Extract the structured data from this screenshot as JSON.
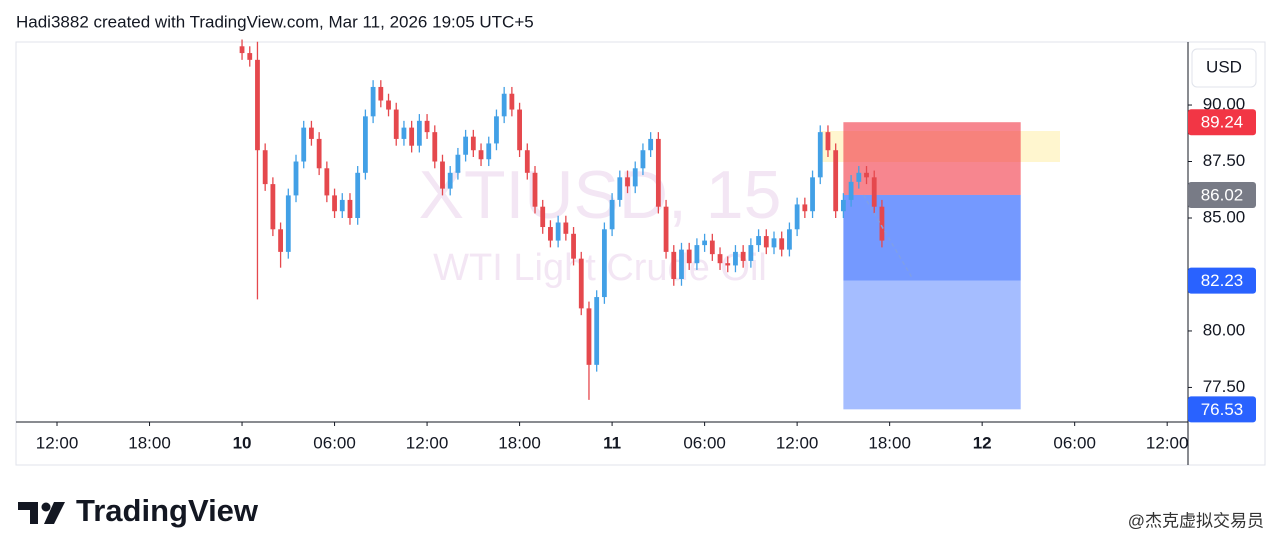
{
  "header": "Hadi3882 created with TradingView.com, Mar 11, 2026 19:05 UTC+5",
  "brand": "TradingView",
  "watermark": "@杰克虚拟交易员",
  "chart_data": {
    "type": "candlestick",
    "symbol": "XTIUSD, 15",
    "description": "WTI Light Crude Oil",
    "currency": "USD",
    "up_color": "#42a0e6",
    "down_color": "#e5484d",
    "grid": false,
    "xlim": [
      -2.66,
      73.35
    ],
    "xticks": [
      {
        "value": 0,
        "label": "12:00"
      },
      {
        "value": 6,
        "label": "18:00"
      },
      {
        "value": 12,
        "label": "10"
      },
      {
        "value": 18,
        "label": "06:00"
      },
      {
        "value": 24,
        "label": "12:00"
      },
      {
        "value": 30,
        "label": "18:00"
      },
      {
        "value": 36,
        "label": "11"
      },
      {
        "value": 42,
        "label": "06:00"
      },
      {
        "value": 48,
        "label": "12:00"
      },
      {
        "value": 54,
        "label": "18:00"
      },
      {
        "value": 60,
        "label": "12"
      },
      {
        "value": 66,
        "label": "06:00"
      },
      {
        "value": 72,
        "label": "12:00"
      }
    ],
    "ylim": [
      75.97,
      92.79
    ],
    "yticks": [
      {
        "value": 77.5,
        "label": "77.50"
      },
      {
        "value": 80,
        "label": "80.00"
      },
      {
        "value": 85,
        "label": "85.00"
      },
      {
        "value": 87.5,
        "label": "87.50"
      },
      {
        "value": 90,
        "label": "90.00"
      }
    ],
    "x": [
      12,
      12.5,
      13,
      13.5,
      14,
      14.5,
      15,
      15.5,
      16,
      16.5,
      17,
      17.5,
      18,
      18.5,
      19,
      19.5,
      20,
      20.5,
      21,
      21.5,
      22,
      22.5,
      23,
      23.5,
      24,
      24.5,
      25,
      25.5,
      26,
      26.5,
      27,
      27.5,
      28,
      28.5,
      29,
      29.5,
      30,
      30.5,
      31,
      31.5,
      32,
      32.5,
      33,
      33.5,
      34,
      34.5,
      35,
      35.5,
      36,
      36.5,
      37,
      37.5,
      38,
      38.5,
      39,
      39.5,
      40,
      40.5,
      41,
      41.5,
      42,
      42.5,
      43,
      43.5,
      44,
      44.5,
      45,
      45.5,
      46,
      46.5,
      47,
      47.5,
      48,
      48.5,
      49,
      49.5,
      50,
      50.5,
      51,
      51.5,
      52,
      52.5,
      53,
      53.5
    ],
    "open": [
      92.6,
      92.3,
      92.0,
      88.0,
      86.5,
      84.5,
      83.5,
      86.0,
      87.5,
      89.0,
      88.5,
      87.2,
      86.0,
      85.3,
      85.8,
      85.0,
      87.0,
      89.5,
      90.8,
      90.2,
      89.8,
      88.5,
      89.0,
      88.2,
      89.3,
      88.8,
      87.5,
      86.3,
      87.0,
      87.8,
      88.6,
      88.0,
      87.6,
      88.3,
      89.5,
      90.5,
      89.8,
      88.0,
      87.0,
      85.5,
      84.6,
      84.0,
      84.8,
      84.3,
      83.2,
      81.0,
      78.5,
      81.5,
      84.5,
      85.8,
      86.8,
      86.4,
      87.2,
      88.0,
      88.5,
      85.5,
      83.5,
      82.3,
      83.6,
      83.0,
      83.8,
      84.0,
      83.4,
      83.0,
      82.9,
      83.5,
      83.1,
      83.8,
      84.2,
      83.7,
      84.1,
      83.6,
      84.5,
      85.6,
      85.3,
      86.8,
      88.8,
      88.0,
      85.3,
      85.8,
      86.6,
      87.0,
      86.8,
      85.5
    ],
    "high": [
      92.9,
      92.6,
      92.8,
      88.3,
      86.8,
      84.8,
      86.3,
      87.8,
      89.3,
      89.3,
      88.8,
      87.5,
      86.3,
      86.1,
      86.1,
      87.3,
      89.8,
      91.1,
      91.1,
      90.5,
      90.1,
      89.3,
      89.3,
      89.6,
      89.6,
      89.1,
      87.8,
      87.3,
      88.1,
      88.9,
      88.9,
      88.3,
      88.6,
      89.8,
      90.8,
      90.8,
      90.1,
      88.3,
      87.3,
      85.8,
      84.9,
      85.1,
      85.1,
      84.6,
      83.5,
      81.3,
      81.8,
      84.8,
      86.1,
      87.1,
      87.1,
      87.5,
      88.3,
      88.8,
      88.8,
      85.8,
      83.8,
      83.9,
      83.9,
      84.1,
      84.3,
      84.3,
      83.7,
      83.3,
      83.8,
      83.8,
      84.1,
      84.5,
      84.5,
      84.4,
      84.4,
      84.8,
      85.9,
      85.9,
      87.1,
      89.1,
      89.1,
      88.3,
      86.1,
      86.9,
      87.3,
      87.3,
      87.1,
      85.8
    ],
    "low": [
      92.0,
      91.7,
      81.4,
      86.2,
      84.2,
      82.8,
      83.2,
      85.7,
      87.2,
      88.2,
      86.9,
      85.7,
      85.0,
      85.0,
      84.7,
      84.7,
      86.7,
      89.2,
      89.9,
      89.5,
      88.2,
      88.2,
      87.9,
      87.9,
      88.5,
      87.2,
      86.0,
      86.0,
      86.7,
      87.5,
      87.7,
      87.3,
      87.3,
      88.0,
      89.2,
      89.5,
      87.7,
      86.7,
      85.2,
      84.3,
      83.7,
      83.7,
      84.0,
      82.9,
      80.7,
      76.95,
      78.2,
      81.2,
      84.2,
      85.5,
      86.1,
      86.1,
      86.9,
      87.7,
      85.2,
      83.2,
      82.0,
      82.0,
      82.7,
      82.7,
      83.5,
      83.1,
      82.7,
      82.6,
      82.6,
      82.8,
      82.8,
      83.5,
      83.4,
      83.4,
      83.3,
      83.3,
      84.2,
      85.0,
      85.0,
      86.5,
      87.7,
      85.0,
      85.0,
      85.5,
      86.3,
      86.5,
      85.2,
      83.7
    ],
    "close": [
      92.3,
      92.0,
      88.0,
      86.5,
      84.5,
      83.5,
      86.0,
      87.5,
      89.0,
      88.5,
      87.2,
      86.0,
      85.3,
      85.8,
      85.0,
      87.0,
      89.5,
      90.8,
      90.2,
      89.8,
      88.5,
      89.0,
      88.2,
      89.3,
      88.8,
      87.5,
      86.3,
      87.0,
      87.8,
      88.6,
      88.0,
      87.6,
      88.3,
      89.5,
      90.5,
      89.8,
      88.0,
      87.0,
      85.5,
      84.6,
      84.0,
      84.8,
      84.3,
      83.2,
      81.0,
      78.5,
      81.5,
      84.5,
      85.8,
      86.8,
      86.4,
      87.2,
      88.0,
      88.5,
      85.5,
      83.5,
      82.3,
      83.6,
      83.0,
      83.8,
      84.0,
      83.4,
      83.0,
      82.9,
      83.5,
      83.1,
      83.8,
      84.2,
      83.7,
      84.1,
      83.6,
      84.5,
      85.6,
      85.3,
      86.8,
      88.8,
      88.0,
      85.3,
      85.8,
      86.6,
      87.0,
      86.8,
      85.5,
      84.0
    ],
    "position": {
      "x_range": [
        51,
        62.5
      ],
      "stop": 89.24,
      "entry": 86.02,
      "target1": 82.23,
      "target2": 76.53,
      "stop_color": "#f23645",
      "entry_color": "#787b86",
      "target_color": "#2962ff"
    }
  }
}
